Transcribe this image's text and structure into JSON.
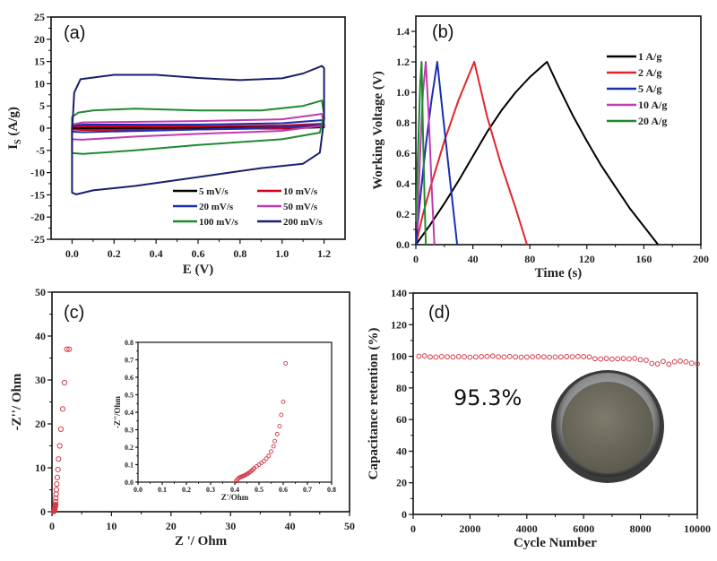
{
  "chart_data": [
    {
      "id": "a",
      "type": "line",
      "panel_label": "(a)",
      "title": "",
      "xlabel": "E (V)",
      "ylabel": "I_S (A/g)",
      "ylabel_main": "I",
      "ylabel_sub": "S",
      "ylabel_rest": " (A/g)",
      "xlim": [
        -0.1,
        1.3
      ],
      "ylim": [
        -25,
        25
      ],
      "xticks": [
        0.0,
        0.2,
        0.4,
        0.6,
        0.8,
        1.0,
        1.2
      ],
      "xtick_labels": [
        "0.0",
        "0.2",
        "0.4",
        "0.6",
        "0.8",
        "1.0",
        "1.2"
      ],
      "yticks": [
        -25,
        -20,
        -15,
        -10,
        -5,
        0,
        5,
        10,
        15,
        20,
        25
      ],
      "ytick_labels": [
        "-25",
        "-20",
        "-15",
        "-10",
        "-5",
        "0",
        "5",
        "10",
        "15",
        "20",
        "25"
      ],
      "legend_position": "bottom-right",
      "series": [
        {
          "name": "5 mV/s",
          "color": "#000000",
          "upper": [
            [
              0,
              0.1
            ],
            [
              0.05,
              0.2
            ],
            [
              0.6,
              0.2
            ],
            [
              1.0,
              0.3
            ],
            [
              1.2,
              0.5
            ]
          ],
          "lower": [
            [
              1.2,
              0.2
            ],
            [
              1.0,
              -0.1
            ],
            [
              0.6,
              -0.15
            ],
            [
              0.05,
              -0.2
            ],
            [
              0,
              -0.1
            ]
          ]
        },
        {
          "name": "10 mV/s",
          "color": "#d0021b",
          "upper": [
            [
              0,
              0.3
            ],
            [
              0.05,
              0.4
            ],
            [
              0.6,
              0.4
            ],
            [
              1.0,
              0.6
            ],
            [
              1.2,
              1.0
            ]
          ],
          "lower": [
            [
              1.2,
              0.4
            ],
            [
              1.0,
              0
            ],
            [
              0.6,
              -0.3
            ],
            [
              0.05,
              -0.4
            ],
            [
              0,
              -0.3
            ]
          ]
        },
        {
          "name": "20 mV/s",
          "color": "#1a2fb0",
          "upper": [
            [
              0,
              0.5
            ],
            [
              0.05,
              0.8
            ],
            [
              0.6,
              0.8
            ],
            [
              1.0,
              1.1
            ],
            [
              1.19,
              1.8
            ]
          ],
          "lower": [
            [
              1.2,
              0.8
            ],
            [
              1.0,
              0.2
            ],
            [
              0.6,
              -0.3
            ],
            [
              0.05,
              -0.9
            ],
            [
              0,
              -0.8
            ]
          ]
        },
        {
          "name": "50 mV/s",
          "color": "#c03ab0",
          "upper": [
            [
              0,
              0.8
            ],
            [
              0.05,
              1.3
            ],
            [
              0.6,
              1.6
            ],
            [
              1.0,
              2.0
            ],
            [
              1.19,
              3.2
            ]
          ],
          "lower": [
            [
              1.2,
              0.6
            ],
            [
              1.0,
              -0.6
            ],
            [
              0.6,
              -1.3
            ],
            [
              0.3,
              -1.9
            ],
            [
              0.05,
              -2.6
            ],
            [
              0,
              -2.5
            ]
          ]
        },
        {
          "name": "100 mV/s",
          "color": "#1e8a2e",
          "upper": [
            [
              0,
              2.5
            ],
            [
              0.03,
              3.5
            ],
            [
              0.1,
              4.0
            ],
            [
              0.3,
              4.4
            ],
            [
              0.6,
              4.0
            ],
            [
              0.9,
              4.0
            ],
            [
              1.1,
              5.0
            ],
            [
              1.19,
              6.2
            ]
          ],
          "lower": [
            [
              1.2,
              3.0
            ],
            [
              1.18,
              -1.0
            ],
            [
              1.0,
              -2.5
            ],
            [
              0.6,
              -3.8
            ],
            [
              0.3,
              -5.0
            ],
            [
              0.05,
              -5.8
            ],
            [
              0,
              -5.6
            ]
          ]
        },
        {
          "name": "200 mV/s",
          "color": "#1a1f6e",
          "upper": [
            [
              0,
              -1
            ],
            [
              0.01,
              8
            ],
            [
              0.04,
              11
            ],
            [
              0.2,
              12.0
            ],
            [
              0.4,
              12.0
            ],
            [
              0.6,
              11.3
            ],
            [
              0.8,
              10.8
            ],
            [
              1.0,
              11.2
            ],
            [
              1.1,
              12.3
            ],
            [
              1.19,
              14.0
            ]
          ],
          "lower": [
            [
              1.2,
              13.5
            ],
            [
              1.2,
              2.0
            ],
            [
              1.18,
              -5.5
            ],
            [
              1.1,
              -8.0
            ],
            [
              0.9,
              -9.0
            ],
            [
              0.6,
              -11.0
            ],
            [
              0.3,
              -13.0
            ],
            [
              0.1,
              -14.0
            ],
            [
              0.02,
              -14.9
            ],
            [
              0,
              -14.5
            ],
            [
              0,
              -1
            ]
          ]
        }
      ]
    },
    {
      "id": "b",
      "type": "line",
      "panel_label": "(b)",
      "title": "",
      "xlabel": "Time (s)",
      "ylabel": "Working Voltage (V)",
      "xlim": [
        0,
        200
      ],
      "ylim": [
        0.0,
        1.5
      ],
      "xticks": [
        0,
        40,
        80,
        120,
        160,
        200
      ],
      "xtick_labels": [
        "0",
        "40",
        "80",
        "120",
        "160",
        "200"
      ],
      "yticks": [
        0.0,
        0.2,
        0.4,
        0.6,
        0.8,
        1.0,
        1.2,
        1.4
      ],
      "ytick_labels": [
        "0.0",
        "0.2",
        "0.4",
        "0.6",
        "0.8",
        "1.0",
        "1.2",
        "1.4"
      ],
      "legend_position": "top-right",
      "series": [
        {
          "name": "1 A/g",
          "color": "#000000",
          "points": [
            [
              0,
              0
            ],
            [
              10,
              0.13
            ],
            [
              20,
              0.27
            ],
            [
              30,
              0.42
            ],
            [
              40,
              0.58
            ],
            [
              50,
              0.74
            ],
            [
              60,
              0.88
            ],
            [
              70,
              1.0
            ],
            [
              80,
              1.1
            ],
            [
              92,
              1.2
            ],
            [
              100,
              1.04
            ],
            [
              110,
              0.85
            ],
            [
              120,
              0.68
            ],
            [
              130,
              0.52
            ],
            [
              140,
              0.38
            ],
            [
              150,
              0.24
            ],
            [
              160,
              0.12
            ],
            [
              170,
              0
            ]
          ]
        },
        {
          "name": "2 A/g",
          "color": "#e0262b",
          "points": [
            [
              0,
              0
            ],
            [
              5,
              0.2
            ],
            [
              10,
              0.37
            ],
            [
              20,
              0.68
            ],
            [
              30,
              0.95
            ],
            [
              41,
              1.2
            ],
            [
              50,
              0.84
            ],
            [
              60,
              0.52
            ],
            [
              70,
              0.24
            ],
            [
              78,
              0
            ]
          ]
        },
        {
          "name": "5 A/g",
          "color": "#1a2fb0",
          "points": [
            [
              0,
              0
            ],
            [
              3,
              0.3
            ],
            [
              7,
              0.65
            ],
            [
              11,
              0.95
            ],
            [
              15,
              1.2
            ],
            [
              19,
              0.85
            ],
            [
              24,
              0.42
            ],
            [
              29,
              0
            ]
          ]
        },
        {
          "name": "10 A/g",
          "color": "#c03ab0",
          "points": [
            [
              1,
              0.1
            ],
            [
              3,
              0.6
            ],
            [
              5,
              1.0
            ],
            [
              7,
              1.2
            ],
            [
              9,
              0.85
            ],
            [
              11,
              0.4
            ],
            [
              13,
              0
            ]
          ]
        },
        {
          "name": "20 A/g",
          "color": "#1e8a2e",
          "points": [
            [
              0,
              0.15
            ],
            [
              1.5,
              0.6
            ],
            [
              3,
              1.05
            ],
            [
              4,
              1.2
            ],
            [
              5,
              0.75
            ],
            [
              6,
              0.35
            ],
            [
              7,
              0
            ]
          ]
        }
      ]
    },
    {
      "id": "c",
      "type": "scatter",
      "panel_label": "(c)",
      "title": "",
      "xlabel": "Z '/ Ohm",
      "ylabel": "-Z''/ Ohm",
      "xlim": [
        0,
        50
      ],
      "ylim": [
        0,
        50
      ],
      "xticks": [
        0,
        10,
        20,
        30,
        40,
        50
      ],
      "xtick_labels": [
        "0",
        "10",
        "20",
        "30",
        "40",
        "50"
      ],
      "yticks": [
        0,
        10,
        20,
        30,
        40,
        50
      ],
      "ytick_labels": [
        "0",
        "10",
        "20",
        "30",
        "40",
        "50"
      ],
      "marker_color": "#d23a4a",
      "x": [
        0.4,
        0.45,
        0.5,
        0.55,
        0.6,
        0.65,
        0.7,
        0.75,
        0.8,
        0.9,
        1.0,
        1.1,
        1.3,
        1.5,
        1.8,
        2.1,
        2.5,
        2.9
      ],
      "y": [
        0.2,
        0.5,
        1.0,
        1.6,
        2.3,
        3.1,
        4.0,
        5.0,
        6.3,
        7.8,
        9.6,
        12.0,
        15.0,
        18.8,
        23.4,
        29.4,
        37.0,
        37.0
      ],
      "inset": {
        "xlabel": "Z'/Ohm",
        "ylabel": "-Z''/Ohm",
        "xlim": [
          0.0,
          0.8
        ],
        "ylim": [
          0.0,
          0.8
        ],
        "xticks": [
          0.0,
          0.1,
          0.2,
          0.3,
          0.4,
          0.5,
          0.6,
          0.7,
          0.8
        ],
        "xtick_labels": [
          "0.0",
          "0.1",
          "0.2",
          "0.3",
          "0.4",
          "0.5",
          "0.6",
          "0.7",
          "0.8"
        ],
        "yticks": [
          0.0,
          0.1,
          0.2,
          0.3,
          0.4,
          0.5,
          0.6,
          0.7,
          0.8
        ],
        "ytick_labels": [
          "0.0",
          "0.1",
          "0.2",
          "0.3",
          "0.4",
          "0.5",
          "0.6",
          "0.7",
          "0.8"
        ],
        "x": [
          0.405,
          0.41,
          0.415,
          0.42,
          0.425,
          0.43,
          0.435,
          0.44,
          0.445,
          0.45,
          0.455,
          0.46,
          0.465,
          0.47,
          0.475,
          0.48,
          0.49,
          0.5,
          0.51,
          0.52,
          0.53,
          0.54,
          0.55,
          0.56,
          0.565,
          0.575,
          0.585,
          0.592,
          0.6,
          0.61
        ],
        "y": [
          0.005,
          0.015,
          0.022,
          0.027,
          0.03,
          0.032,
          0.035,
          0.038,
          0.042,
          0.046,
          0.05,
          0.055,
          0.06,
          0.066,
          0.072,
          0.08,
          0.09,
          0.1,
          0.11,
          0.12,
          0.135,
          0.15,
          0.175,
          0.205,
          0.235,
          0.275,
          0.32,
          0.385,
          0.46,
          0.68
        ]
      }
    },
    {
      "id": "d",
      "type": "scatter",
      "panel_label": "(d)",
      "title": "",
      "xlabel": "Cycle Number",
      "ylabel": "Capacitance retention (%)",
      "xlim": [
        0,
        10000
      ],
      "ylim": [
        0,
        140
      ],
      "xticks": [
        0,
        2000,
        4000,
        6000,
        8000,
        10000
      ],
      "xtick_labels": [
        "0",
        "2000",
        "4000",
        "6000",
        "8000",
        "10000"
      ],
      "yticks": [
        0,
        20,
        40,
        60,
        80,
        100,
        120,
        140
      ],
      "ytick_labels": [
        "0",
        "20",
        "40",
        "60",
        "80",
        "100",
        "120",
        "140"
      ],
      "marker_color": "#d23a4a",
      "annotation": "95.3%",
      "inset_image": "coin-cell-photo",
      "x": [
        200,
        400,
        600,
        800,
        1000,
        1200,
        1400,
        1600,
        1800,
        2000,
        2200,
        2400,
        2600,
        2800,
        3000,
        3200,
        3400,
        3600,
        3800,
        4000,
        4200,
        4400,
        4600,
        4800,
        5000,
        5200,
        5400,
        5600,
        5800,
        6000,
        6200,
        6400,
        6600,
        6800,
        7000,
        7200,
        7400,
        7600,
        7800,
        8000,
        8200,
        8400,
        8600,
        8800,
        9000,
        9200,
        9400,
        9600,
        9800,
        10000
      ],
      "y": [
        100,
        100.3,
        99.6,
        99.5,
        99.8,
        99.7,
        99.5,
        99.8,
        99.7,
        99.4,
        99.6,
        99.8,
        99.9,
        100.2,
        99.7,
        99.5,
        99.9,
        99.6,
        99.4,
        99.5,
        99.7,
        99.8,
        99.6,
        99.4,
        99.5,
        99.6,
        99.8,
        99.7,
        99.9,
        99.8,
        99.6,
        98.5,
        98.3,
        98.6,
        98.2,
        98.4,
        98.6,
        98.3,
        98.7,
        97.8,
        97.5,
        95.5,
        95.2,
        96.8,
        95.0,
        96.5,
        97.0,
        96.5,
        95.6,
        95.3
      ]
    }
  ]
}
